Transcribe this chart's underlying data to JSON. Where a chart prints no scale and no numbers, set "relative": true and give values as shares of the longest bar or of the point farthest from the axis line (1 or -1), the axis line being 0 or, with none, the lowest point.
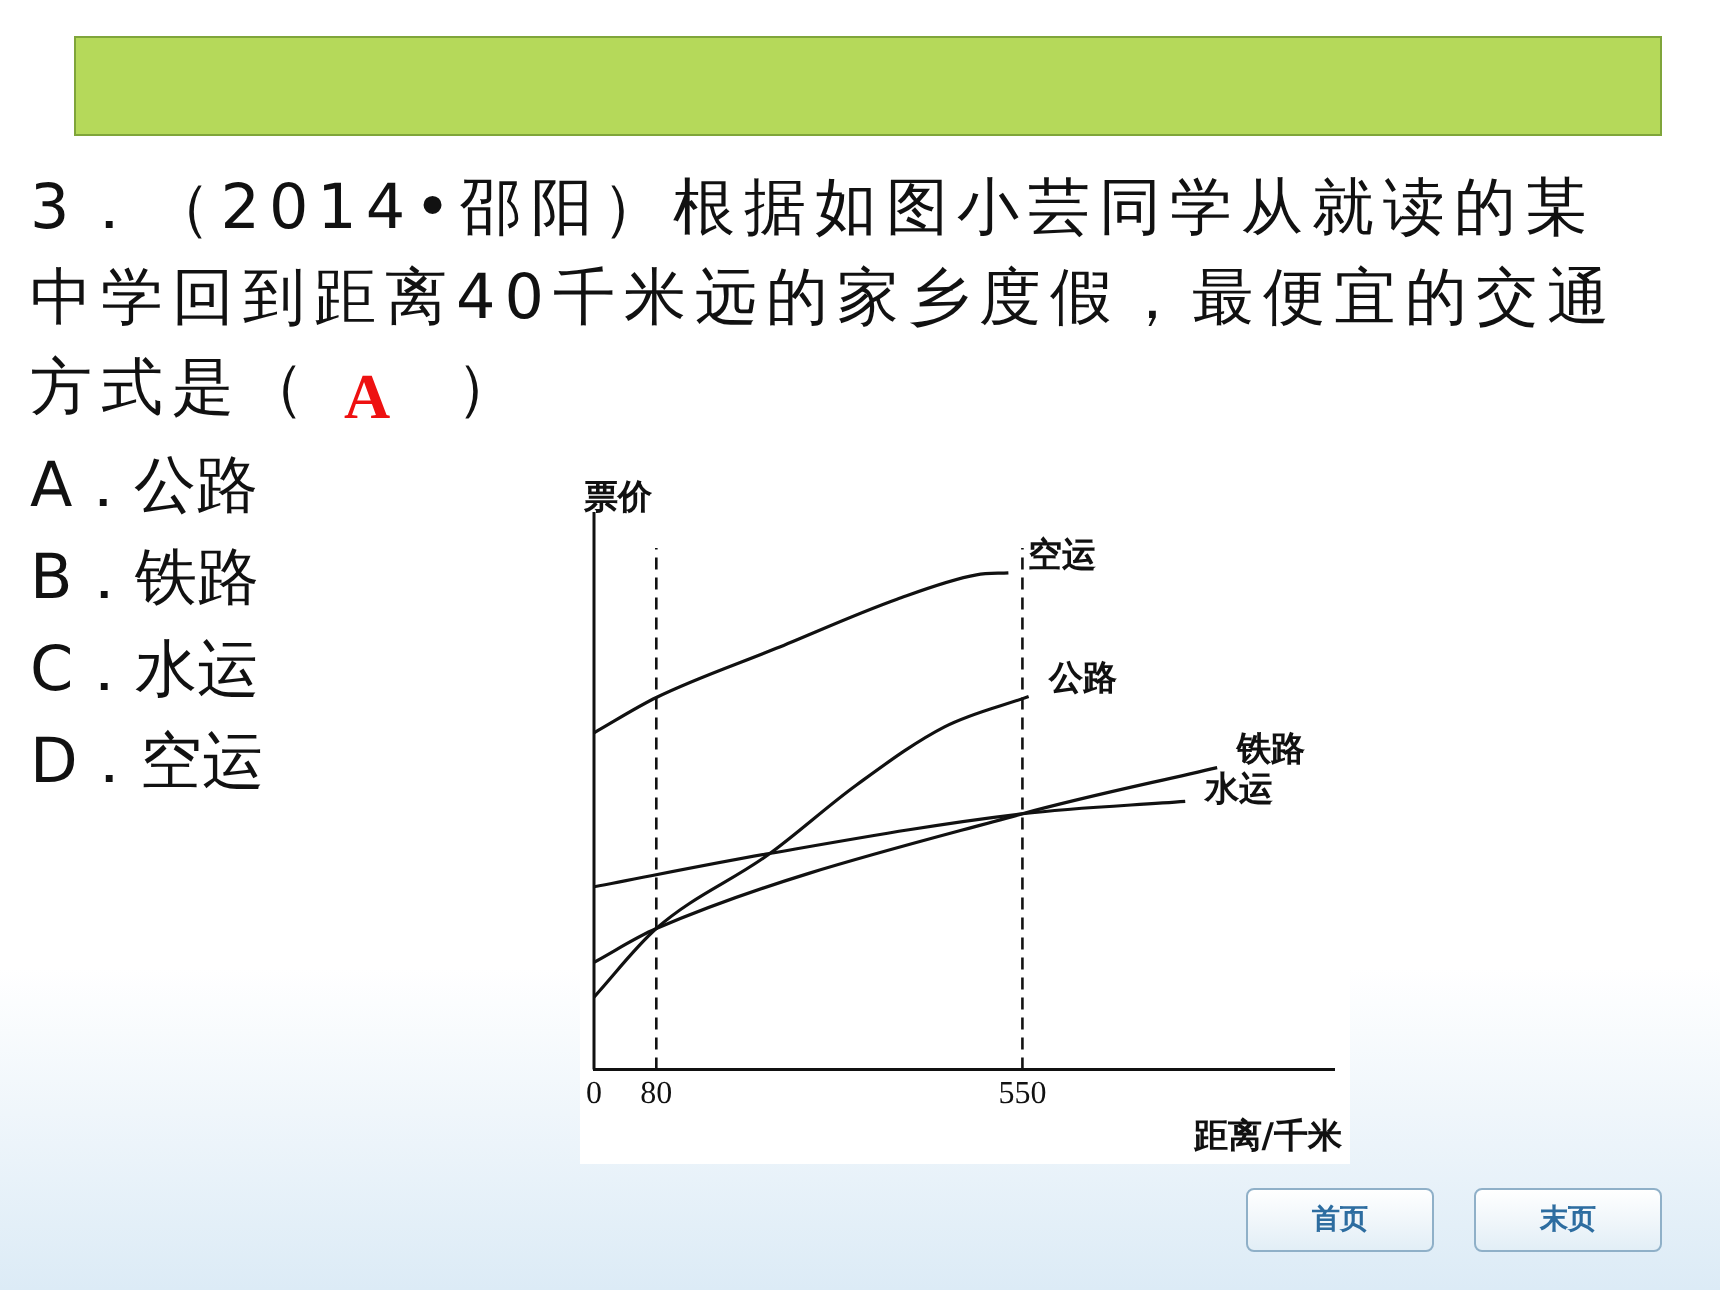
{
  "chart_data": {
    "type": "line",
    "title": "3．（2014•邵阳）根据如图小芸同学从就读的某中学回到距离40千米远的家乡度假，最便宜的交通方式是（　　）",
    "xlabel": "距离/千米",
    "ylabel": "票价",
    "relative": true,
    "xlim": [
      0,
      950
    ],
    "xticks": [
      0,
      80,
      550
    ],
    "series": [
      {
        "name": "空运",
        "color": "#111111",
        "x": [
          0,
          80,
          234,
          389,
          491,
          532
        ],
        "values": [
          0.678,
          0.749,
          0.848,
          0.947,
          0.996,
          1
        ]
      },
      {
        "name": "公路",
        "color": "#111111",
        "x": [
          0,
          80,
          224,
          337,
          450,
          558
        ],
        "values": [
          0.146,
          0.284,
          0.433,
          0.573,
          0.69,
          0.751
        ]
      },
      {
        "name": "铁路",
        "color": "#111111",
        "x": [
          0,
          80,
          550,
          800
        ],
        "values": [
          0.216,
          0.284,
          0.515,
          0.608
        ]
      },
      {
        "name": "水运",
        "color": "#111111",
        "x": [
          0,
          225,
          550,
          759
        ],
        "values": [
          0.368,
          0.435,
          0.515,
          0.54
        ]
      }
    ],
    "ref_lines": [
      {
        "axis": "x",
        "value": 80,
        "line_style": "dashed"
      },
      {
        "axis": "x",
        "value": 550,
        "line_style": "dashed"
      }
    ],
    "annotations": [
      "A",
      "A．公路",
      "B．铁路",
      "C．水运",
      "D．空运",
      "首页",
      "末页"
    ],
    "grid": false,
    "legend": false,
    "marker": "none",
    "line_style": "solid"
  }
}
